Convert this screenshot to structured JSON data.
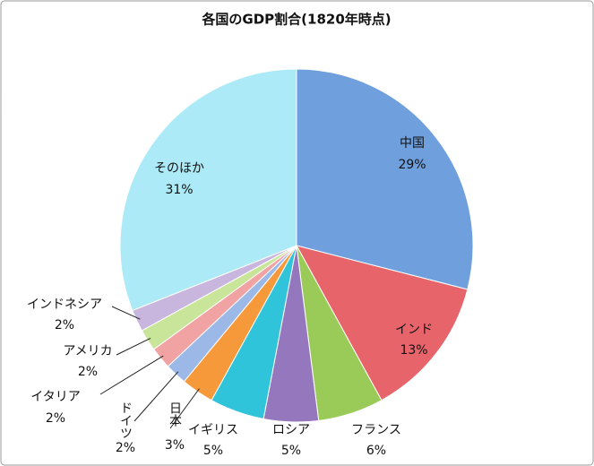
{
  "chart_data": {
    "type": "pie",
    "title": "各国のGDP割合(1820年時点)",
    "categories": [
      "中国",
      "インド",
      "フランス",
      "ロシア",
      "イギリス",
      "日本",
      "ドイツ",
      "イタリア",
      "アメリカ",
      "インドネシア",
      "そのほか"
    ],
    "values": [
      29,
      13,
      6,
      5,
      5,
      3,
      2,
      2,
      2,
      2,
      31
    ],
    "value_labels": [
      "29%",
      "13%",
      "6%",
      "5%",
      "5%",
      "3%",
      "2%",
      "2%",
      "2%",
      "2%",
      "31%"
    ],
    "colors": [
      "#6f9fdc",
      "#e8646b",
      "#9acb58",
      "#9577be",
      "#2fc4da",
      "#f6993a",
      "#9cb8e6",
      "#f1a2a2",
      "#c8e59a",
      "#c8b6df",
      "#abeaf6"
    ]
  }
}
